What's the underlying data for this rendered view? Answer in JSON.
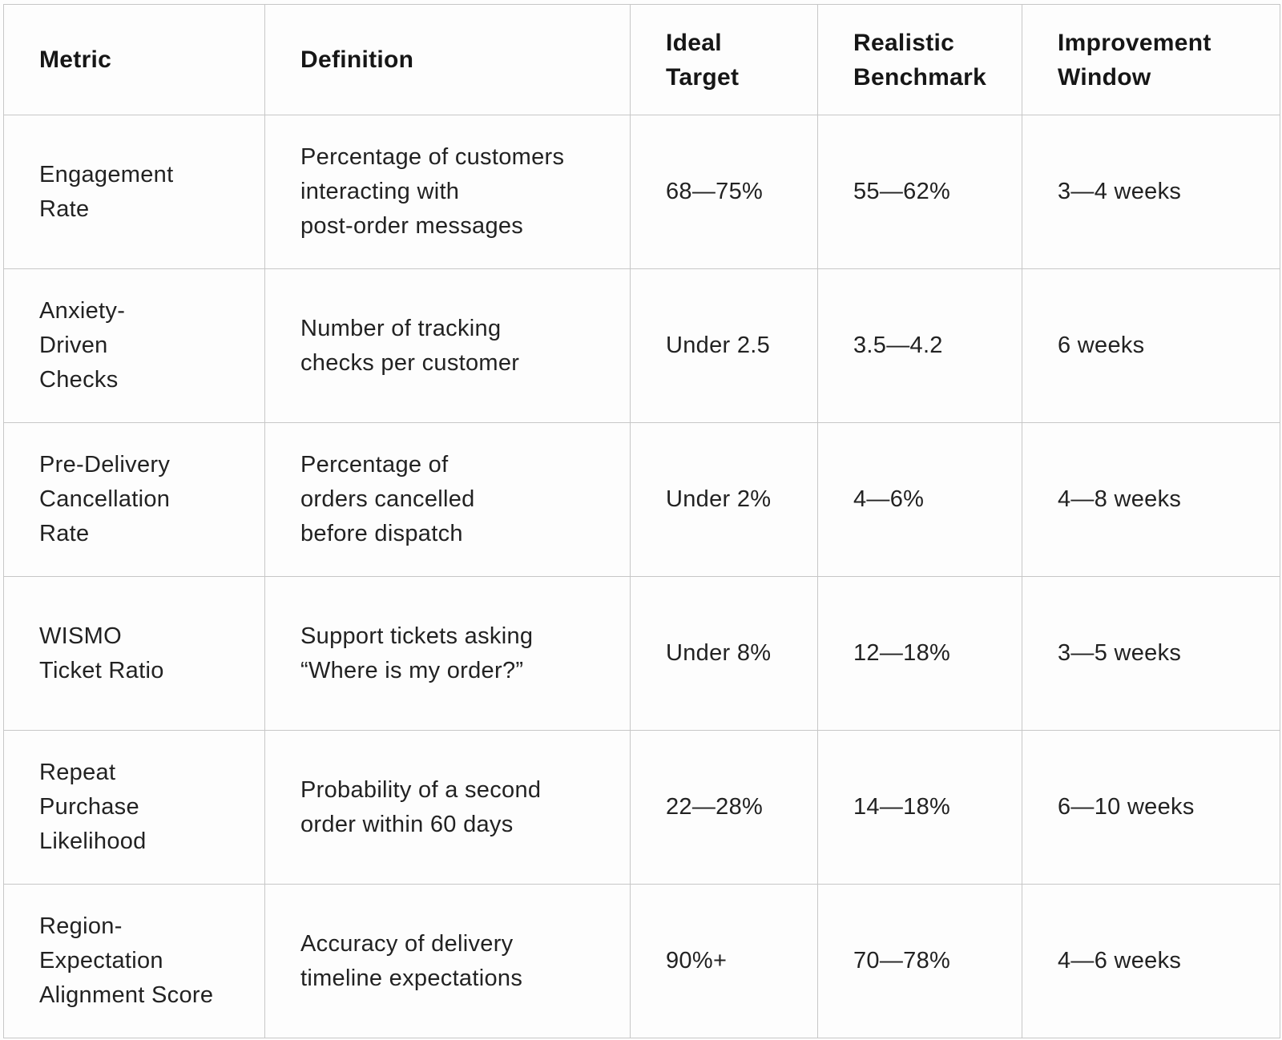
{
  "table": {
    "columns": [
      {
        "id": "metric",
        "label": "Metric"
      },
      {
        "id": "definition",
        "label": "Definition"
      },
      {
        "id": "ideal",
        "label": "Ideal\nTarget"
      },
      {
        "id": "benchmark",
        "label": "Realistic\nBenchmark"
      },
      {
        "id": "window",
        "label": "Improvement\nWindow"
      }
    ],
    "rows": [
      {
        "metric": "Engagement\nRate",
        "definition": "Percentage of customers\ninteracting with\npost-order messages",
        "ideal": "68—75%",
        "benchmark": "55—62%",
        "window": "3—4 weeks"
      },
      {
        "metric": "Anxiety-\nDriven\nChecks",
        "definition": "Number of tracking\nchecks per customer",
        "ideal": "Under 2.5",
        "benchmark": "3.5—4.2",
        "window": "6 weeks"
      },
      {
        "metric": "Pre-Delivery\nCancellation\nRate",
        "definition": "Percentage of\norders cancelled\nbefore dispatch",
        "ideal": "Under 2%",
        "benchmark": "4—6%",
        "window": "4—8 weeks"
      },
      {
        "metric": "WISMO\nTicket Ratio",
        "definition": "Support tickets asking\n“Where is my order?”",
        "ideal": "Under 8%",
        "benchmark": "12—18%",
        "window": "3—5 weeks"
      },
      {
        "metric": "Repeat\nPurchase\nLikelihood",
        "definition": "Probability of a second\norder within 60 days",
        "ideal": "22—28%",
        "benchmark": "14—18%",
        "window": "6—10 weeks"
      },
      {
        "metric": "Region-\nExpectation\nAlignment Score",
        "definition": "Accuracy of delivery\ntimeline expectations",
        "ideal": "90%+",
        "benchmark": "70—78%",
        "window": "4—6 weeks"
      }
    ]
  },
  "colors": {
    "background": "#fdfdfd",
    "border": "#c7c7c7",
    "header_text": "#161616",
    "body_text": "#222222"
  }
}
